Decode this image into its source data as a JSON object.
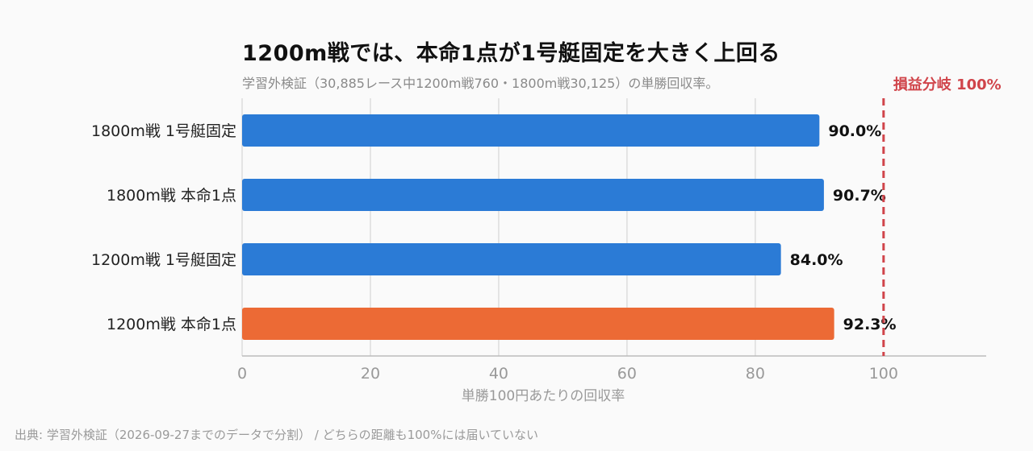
{
  "title": "1200m戦では、本命1点が1号艇固定を大きく上回る",
  "subtitle": "学習外検証（30,885レース中1200m戦760・1800m戦30,125）の単勝回収率。",
  "source": "出典: 学習外検証（2026-09-27までのデータで分割） / どちらの距離も100%には届いていない",
  "colors": {
    "bar": "#2b7bd6",
    "highlight": "#ec6a35",
    "reference": "#d0444a",
    "grid": "#dddddd",
    "axis": "#bbbbbb",
    "tick": "#999999"
  },
  "chart_data": {
    "type": "bar",
    "orientation": "horizontal",
    "categories": [
      "1800m戦 1号艇固定",
      "1800m戦 本命1点",
      "1200m戦 1号艇固定",
      "1200m戦 本命1点"
    ],
    "values": [
      90.0,
      90.7,
      84.0,
      92.3
    ],
    "value_labels": [
      "90.0%",
      "90.7%",
      "84.0%",
      "92.3%"
    ],
    "highlight_index": 3,
    "xlabel": "単勝100円あたりの回収率",
    "xlim": [
      0,
      116
    ],
    "xticks": [
      0,
      20,
      40,
      60,
      80,
      100
    ],
    "grid": true,
    "reference_line": {
      "value": 100,
      "label": "損益分岐 100%"
    }
  }
}
